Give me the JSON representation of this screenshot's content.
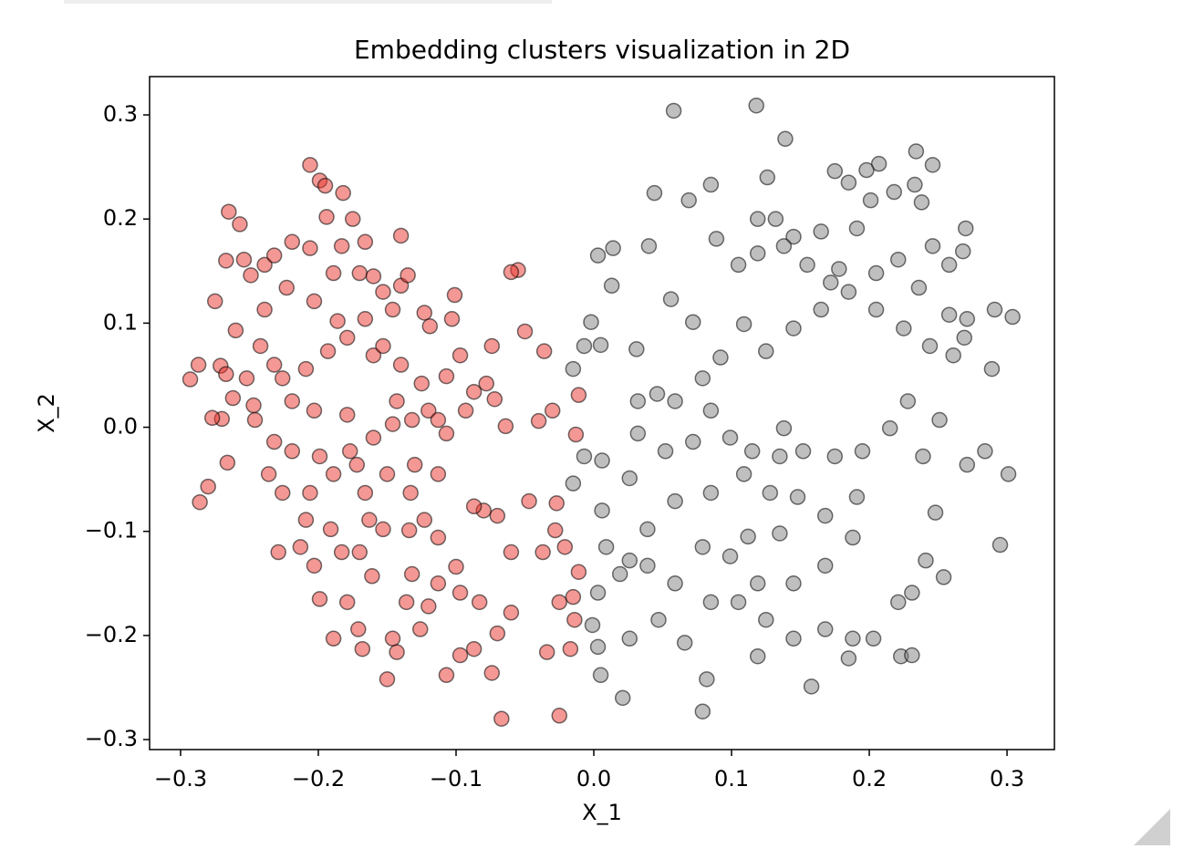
{
  "chart_data": {
    "type": "scatter",
    "title": "Embedding clusters visualization in 2D",
    "xlabel": "X_1",
    "ylabel": "X_2",
    "xlim": [
      -0.3225,
      0.3344
    ],
    "ylim": [
      -0.3096,
      0.3368
    ],
    "xticks": [
      {
        "value": -0.3,
        "label": "−0.3"
      },
      {
        "value": -0.2,
        "label": "−0.2"
      },
      {
        "value": -0.1,
        "label": "−0.1"
      },
      {
        "value": 0,
        "label": "0.0"
      },
      0.1,
      0.2,
      0.3
    ],
    "yticks": [
      {
        "value": -0.3,
        "label": "−0.3"
      },
      {
        "value": -0.2,
        "label": "−0.2"
      },
      {
        "value": -0.1,
        "label": "−0.1"
      },
      {
        "value": 0,
        "label": "0.0"
      },
      0.1,
      0.2,
      0.3
    ],
    "grid": false,
    "alpha": 0.5,
    "edgecolor": "#000000",
    "series": [
      {
        "color": "#e8312a",
        "x": [
          -0.293,
          -0.287,
          -0.286,
          -0.28,
          -0.275,
          -0.271,
          -0.27,
          -0.266,
          -0.267,
          -0.265,
          -0.262,
          -0.257,
          -0.206,
          -0.199,
          -0.195,
          -0.182,
          -0.194,
          -0.175,
          -0.166,
          -0.183,
          -0.254,
          -0.249,
          -0.239,
          -0.232,
          -0.219,
          -0.206,
          -0.189,
          -0.17,
          -0.16,
          -0.153,
          -0.14,
          -0.135,
          -0.14,
          -0.146,
          -0.123,
          -0.101,
          -0.103,
          -0.119,
          -0.097,
          -0.074,
          -0.078,
          -0.072,
          -0.064,
          -0.05,
          -0.055,
          -0.06,
          -0.036,
          -0.03,
          -0.04,
          -0.011,
          -0.013,
          -0.07,
          -0.08,
          -0.087,
          -0.06,
          -0.047,
          -0.027,
          -0.028,
          -0.037,
          -0.021,
          -0.011,
          -0.015,
          -0.025,
          -0.014,
          -0.034,
          -0.017,
          -0.025,
          -0.067,
          -0.074,
          -0.087,
          -0.097,
          -0.107,
          -0.126,
          -0.146,
          -0.168,
          -0.15,
          -0.143,
          -0.12,
          -0.113,
          -0.1,
          -0.097,
          -0.083,
          -0.07,
          -0.06,
          -0.113,
          -0.123,
          -0.133,
          -0.153,
          -0.17,
          -0.161,
          -0.179,
          -0.199,
          -0.203,
          -0.183,
          -0.213,
          -0.209,
          -0.229,
          -0.226,
          -0.206,
          -0.189,
          -0.172,
          -0.16,
          -0.146,
          -0.132,
          -0.12,
          -0.107,
          -0.093,
          -0.107,
          -0.125,
          -0.14,
          -0.16,
          -0.179,
          -0.193,
          -0.209,
          -0.219,
          -0.203,
          -0.179,
          -0.177,
          -0.199,
          -0.219,
          -0.236,
          -0.232,
          -0.246,
          -0.247,
          -0.252,
          -0.232,
          -0.242,
          -0.26,
          -0.239,
          -0.223,
          -0.203,
          -0.186,
          -0.166,
          -0.153,
          -0.143,
          -0.113,
          -0.13,
          -0.15,
          -0.166,
          -0.163,
          -0.191,
          -0.134,
          -0.132,
          -0.136,
          -0.171,
          -0.189,
          -0.226,
          -0.267,
          -0.277,
          -0.113,
          -0.087
        ],
        "values": [
          0.046,
          0.06,
          -0.072,
          -0.057,
          0.121,
          0.059,
          0.008,
          -0.034,
          0.16,
          0.207,
          0.028,
          0.195,
          0.252,
          0.237,
          0.232,
          0.225,
          0.202,
          0.2,
          0.178,
          0.174,
          0.161,
          0.146,
          0.156,
          0.165,
          0.178,
          0.172,
          0.148,
          0.148,
          0.145,
          0.13,
          0.136,
          0.146,
          0.184,
          0.113,
          0.11,
          0.127,
          0.104,
          0.097,
          0.069,
          0.078,
          0.042,
          0.027,
          0.001,
          0.092,
          0.151,
          0.149,
          0.073,
          0.016,
          0.006,
          0.031,
          -0.007,
          -0.085,
          -0.08,
          -0.076,
          -0.12,
          -0.071,
          -0.073,
          -0.099,
          -0.12,
          -0.115,
          -0.139,
          -0.163,
          -0.168,
          -0.185,
          -0.216,
          -0.213,
          -0.277,
          -0.28,
          -0.236,
          -0.213,
          -0.219,
          -0.238,
          -0.194,
          -0.203,
          -0.213,
          -0.242,
          -0.216,
          -0.172,
          -0.15,
          -0.134,
          -0.159,
          -0.168,
          -0.198,
          -0.178,
          -0.106,
          -0.089,
          -0.063,
          -0.098,
          -0.12,
          -0.143,
          -0.168,
          -0.165,
          -0.133,
          -0.12,
          -0.115,
          -0.089,
          -0.12,
          -0.063,
          -0.063,
          -0.045,
          -0.036,
          -0.01,
          0.003,
          0.007,
          0.016,
          -0.006,
          0.016,
          0.049,
          0.042,
          0.06,
          0.069,
          0.086,
          0.073,
          0.056,
          0.025,
          0.016,
          0.012,
          -0.023,
          -0.028,
          -0.023,
          -0.045,
          -0.014,
          0.007,
          0.021,
          0.047,
          0.06,
          0.078,
          0.093,
          0.113,
          0.134,
          0.121,
          0.102,
          0.104,
          0.078,
          0.025,
          -0.045,
          -0.036,
          -0.045,
          -0.063,
          -0.089,
          -0.098,
          -0.099,
          -0.141,
          -0.168,
          -0.194,
          -0.203,
          0.047,
          0.051,
          0.009,
          0.007,
          0.034
        ]
      },
      {
        "color": "#808080",
        "x": [
          0.058,
          0.118,
          0.139,
          0.246,
          0.234,
          0.207,
          0.218,
          0.175,
          0.191,
          0.185,
          0.201,
          0.165,
          0.145,
          0.132,
          0.119,
          0.105,
          0.119,
          0.138,
          0.155,
          0.172,
          0.178,
          0.205,
          0.221,
          0.246,
          0.258,
          0.27,
          0.268,
          0.236,
          0.258,
          0.271,
          0.291,
          0.304,
          0.289,
          0.269,
          0.261,
          0.244,
          0.225,
          0.205,
          0.185,
          0.165,
          0.145,
          0.125,
          0.109,
          0.092,
          0.079,
          0.059,
          0.046,
          0.032,
          0.032,
          0.052,
          0.072,
          0.085,
          0.099,
          0.115,
          0.135,
          0.152,
          0.175,
          0.195,
          0.215,
          0.228,
          0.251,
          0.239,
          0.271,
          0.284,
          0.301,
          0.295,
          0.248,
          0.241,
          0.254,
          0.231,
          0.221,
          0.203,
          0.188,
          0.168,
          0.145,
          0.125,
          0.105,
          0.085,
          0.066,
          0.047,
          0.026,
          0.005,
          0.021,
          0.003,
          -0.001,
          0.003,
          0.009,
          0.026,
          0.039,
          0.059,
          0.085,
          0.109,
          0.128,
          0.148,
          0.168,
          0.191,
          0.188,
          0.168,
          0.145,
          0.119,
          0.099,
          0.079,
          0.059,
          0.039,
          0.019,
          0.006,
          0.026,
          0.006,
          -0.007,
          -0.015,
          0.044,
          0.069,
          0.056,
          0.072,
          0.079,
          0.082,
          0.119,
          0.158,
          0.185,
          0.223,
          0.231,
          -0.007,
          -0.002,
          0.005,
          -0.015,
          0.003,
          0.014,
          0.013,
          0.031,
          0.04,
          0.089,
          0.085,
          0.126,
          0.233,
          0.238,
          0.198,
          0.135,
          0.112,
          0.138
        ],
        "values": [
          0.304,
          0.309,
          0.277,
          0.252,
          0.265,
          0.253,
          0.226,
          0.246,
          0.191,
          0.235,
          0.218,
          0.188,
          0.183,
          0.2,
          0.2,
          0.156,
          0.167,
          0.174,
          0.156,
          0.139,
          0.152,
          0.148,
          0.161,
          0.174,
          0.156,
          0.191,
          0.169,
          0.134,
          0.108,
          0.104,
          0.113,
          0.106,
          0.056,
          0.086,
          0.069,
          0.078,
          0.095,
          0.113,
          0.13,
          0.113,
          0.095,
          0.073,
          0.099,
          0.067,
          0.047,
          0.025,
          0.032,
          0.025,
          -0.006,
          -0.023,
          -0.014,
          0.016,
          -0.01,
          -0.023,
          -0.028,
          -0.023,
          -0.028,
          -0.023,
          -0.001,
          0.025,
          0.007,
          -0.028,
          -0.036,
          -0.023,
          -0.045,
          -0.113,
          -0.082,
          -0.128,
          -0.144,
          -0.159,
          -0.168,
          -0.203,
          -0.203,
          -0.194,
          -0.203,
          -0.185,
          -0.168,
          -0.168,
          -0.207,
          -0.185,
          -0.203,
          -0.238,
          -0.26,
          -0.211,
          -0.19,
          -0.159,
          -0.115,
          -0.128,
          -0.098,
          -0.071,
          -0.063,
          -0.045,
          -0.063,
          -0.067,
          -0.085,
          -0.067,
          -0.106,
          -0.133,
          -0.15,
          -0.15,
          -0.124,
          -0.115,
          -0.15,
          -0.133,
          -0.141,
          -0.08,
          -0.049,
          -0.032,
          -0.028,
          -0.054,
          0.225,
          0.218,
          0.123,
          0.101,
          -0.273,
          -0.242,
          -0.22,
          -0.249,
          -0.222,
          -0.22,
          -0.219,
          0.078,
          0.101,
          0.079,
          0.056,
          0.165,
          0.172,
          0.136,
          0.075,
          0.174,
          0.181,
          0.233,
          0.24,
          0.233,
          0.216,
          0.247,
          -0.102,
          -0.105,
          -0.001
        ]
      }
    ]
  }
}
